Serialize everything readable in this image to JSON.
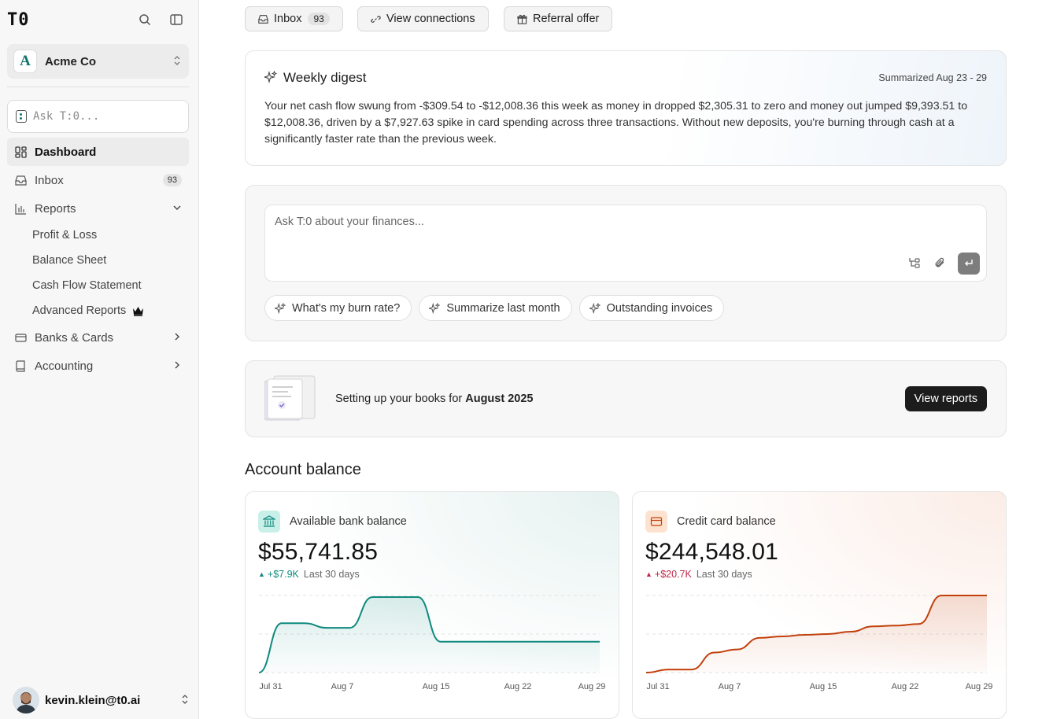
{
  "sidebar": {
    "logo": "T0",
    "org_name": "Acme Co",
    "org_initial": "A",
    "ask_placeholder": "Ask T:0...",
    "nav": [
      {
        "label": "Dashboard",
        "icon": "dashboard-icon"
      },
      {
        "label": "Inbox",
        "icon": "inbox-icon",
        "badge": "93"
      },
      {
        "label": "Reports",
        "icon": "bar-chart-icon"
      },
      {
        "label": "Banks & Cards",
        "icon": "credit-card-icon"
      },
      {
        "label": "Accounting",
        "icon": "book-icon"
      }
    ],
    "reports_sub": [
      "Profit & Loss",
      "Balance Sheet",
      "Cash Flow Statement",
      "Advanced Reports"
    ],
    "user_email": "kevin.klein@t0.ai"
  },
  "topbar": {
    "inbox_label": "Inbox",
    "inbox_count": "93",
    "connections_label": "View connections",
    "referral_label": "Referral offer"
  },
  "digest": {
    "title": "Weekly digest",
    "range": "Summarized Aug 23 - 29",
    "text": "Your net cash flow swung from -$309.54 to -$12,008.36 this week as money in dropped $2,305.31 to zero and money out jumped $9,393.51 to $12,008.36, driven by a $7,927.63 spike in card spending across three transactions. Without new deposits, you're burning through cash at a significantly faster rate than the previous week."
  },
  "chat": {
    "placeholder": "Ask T:0 about your finances...",
    "suggestions": [
      "What's my burn rate?",
      "Summarize last month",
      "Outstanding invoices"
    ]
  },
  "books": {
    "text_prefix": "Setting up your books for ",
    "period": "August 2025",
    "button": "View reports"
  },
  "account_balance": {
    "title": "Account balance",
    "bank": {
      "label": "Available bank balance",
      "amount": "$55,741.85",
      "delta": "+$7.9K",
      "period": "Last 30 days",
      "color": "#0f8a7e"
    },
    "credit": {
      "label": "Credit card balance",
      "amount": "$244,548.01",
      "delta": "+$20.7K",
      "period": "Last 30 days",
      "color": "#c2410c"
    }
  },
  "chart_data": [
    {
      "type": "area",
      "name": "Available bank balance",
      "x_ticks": [
        "Jul 31",
        "Aug 7",
        "Aug 15",
        "Aug 22",
        "Aug 29"
      ],
      "y": [
        0.0,
        0.64,
        0.64,
        0.58,
        0.58,
        0.98,
        0.98,
        0.98,
        0.4,
        0.4,
        0.4,
        0.4,
        0.4,
        0.4,
        0.4,
        0.4
      ],
      "grid": "dashed-horizontal"
    },
    {
      "type": "area",
      "name": "Credit card balance",
      "x_ticks": [
        "Jul 31",
        "Aug 7",
        "Aug 15",
        "Aug 22",
        "Aug 29"
      ],
      "y": [
        0.0,
        0.04,
        0.04,
        0.26,
        0.3,
        0.45,
        0.47,
        0.49,
        0.5,
        0.53,
        0.6,
        0.61,
        0.63,
        1.0,
        1.0,
        1.0
      ],
      "grid": "dashed-horizontal"
    }
  ]
}
